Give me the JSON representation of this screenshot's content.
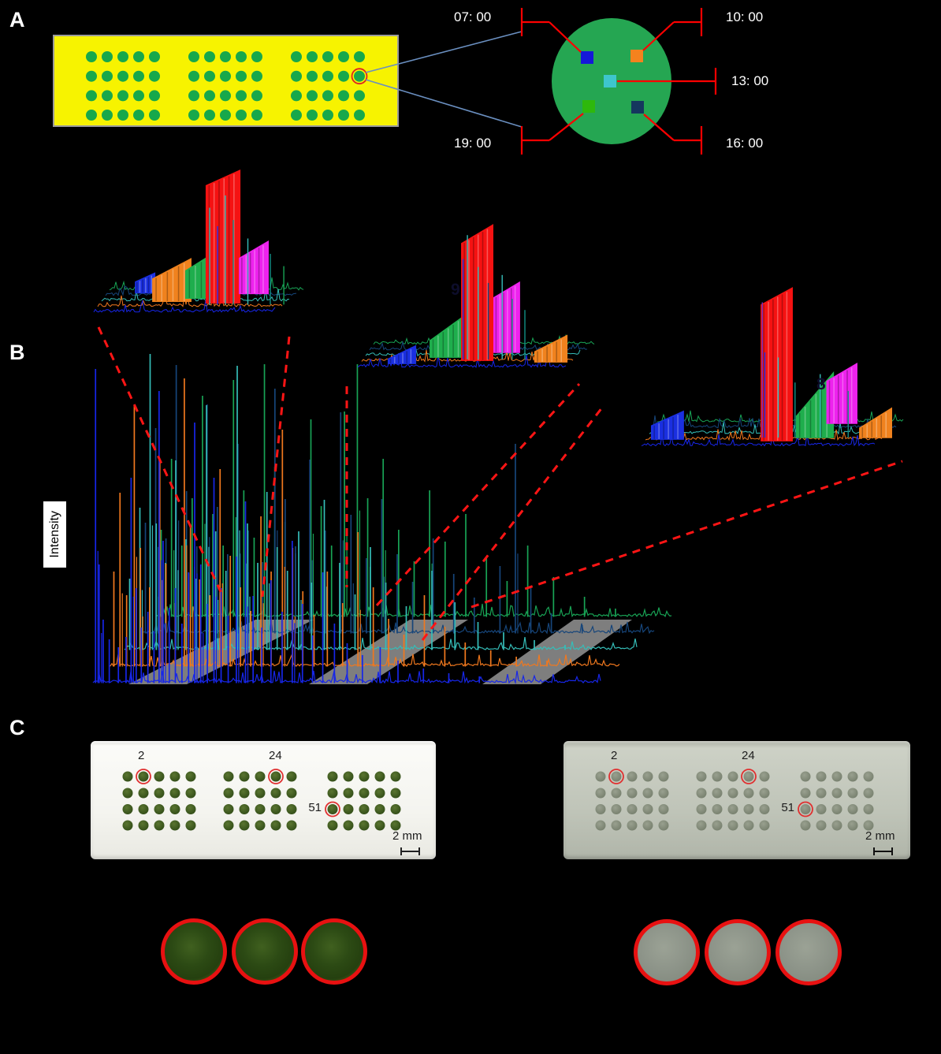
{
  "panel_a": {
    "label": "A",
    "plate": {
      "blocks": 3,
      "rows": 4,
      "cols": 5,
      "plate_color": "#f7f300",
      "dot_color": "#17a84b",
      "border_color": "#9b9b9b",
      "circled_spot": {
        "block": 3,
        "row": 2,
        "col": 5
      }
    },
    "colony": {
      "color": "#25a652"
    },
    "sample_times": [
      {
        "label": "07: 00",
        "square_color": "#1518d8",
        "position": "top-left"
      },
      {
        "label": "10: 00",
        "square_color": "#f5821e",
        "position": "top-right"
      },
      {
        "label": "13: 00",
        "square_color": "#3ec6cc",
        "position": "center"
      },
      {
        "label": "16: 00",
        "square_color": "#15375e",
        "position": "bottom-right"
      },
      {
        "label": "19: 00",
        "square_color": "#2eb80c",
        "position": "bottom-left"
      }
    ],
    "connector_color": "#ff0000",
    "callout_line_color": "#6a8fc0"
  },
  "panel_b": {
    "label": "B",
    "ylabel": "Intensity",
    "zoom_line_color": "#ff1515",
    "band_color": "#8c8c8c"
  },
  "chart_data": {
    "type": "line",
    "title": "",
    "xlabel": "",
    "ylabel": "Intensity",
    "legend": [
      "07: 00",
      "10: 00",
      "13: 00",
      "16: 00",
      "19: 00"
    ],
    "grid": false,
    "series": [
      {
        "name": "07: 00",
        "color": "#1726e8",
        "peaks": [
          [
            0.005,
            398
          ],
          [
            0.012,
            150
          ],
          [
            0.02,
            80
          ],
          [
            0.032,
            55
          ],
          [
            0.05,
            45
          ],
          [
            0.065,
            58
          ],
          [
            0.075,
            260
          ],
          [
            0.085,
            120
          ],
          [
            0.095,
            70
          ],
          [
            0.108,
            90
          ],
          [
            0.12,
            65
          ],
          [
            0.13,
            370
          ],
          [
            0.138,
            180
          ],
          [
            0.15,
            95
          ],
          [
            0.162,
            120
          ],
          [
            0.175,
            75
          ],
          [
            0.188,
            140
          ],
          [
            0.2,
            330
          ],
          [
            0.212,
            150
          ],
          [
            0.225,
            100
          ],
          [
            0.238,
            260
          ],
          [
            0.252,
            120
          ],
          [
            0.266,
            85
          ],
          [
            0.282,
            160
          ],
          [
            0.3,
            230
          ],
          [
            0.315,
            110
          ],
          [
            0.332,
            70
          ],
          [
            0.35,
            130
          ],
          [
            0.372,
            90
          ],
          [
            0.392,
            180
          ],
          [
            0.412,
            100
          ],
          [
            0.432,
            60
          ],
          [
            0.452,
            140
          ],
          [
            0.475,
            75
          ],
          [
            0.5,
            50
          ],
          [
            0.53,
            35
          ],
          [
            0.565,
            45
          ],
          [
            0.6,
            28
          ],
          [
            0.65,
            18
          ],
          [
            0.7,
            12
          ],
          [
            0.76,
            8
          ]
        ]
      },
      {
        "name": "10: 00",
        "color": "#f0781e",
        "peaks": [
          [
            0.01,
            120
          ],
          [
            0.022,
            220
          ],
          [
            0.035,
            90
          ],
          [
            0.05,
            330
          ],
          [
            0.062,
            150
          ],
          [
            0.08,
            100
          ],
          [
            0.1,
            260
          ],
          [
            0.112,
            130
          ],
          [
            0.13,
            80
          ],
          [
            0.148,
            365
          ],
          [
            0.16,
            180
          ],
          [
            0.178,
            110
          ],
          [
            0.198,
            90
          ],
          [
            0.218,
            250
          ],
          [
            0.238,
            140
          ],
          [
            0.258,
            100
          ],
          [
            0.278,
            70
          ],
          [
            0.298,
            190
          ],
          [
            0.318,
            120
          ],
          [
            0.34,
            300
          ],
          [
            0.36,
            150
          ],
          [
            0.38,
            95
          ],
          [
            0.402,
            65
          ],
          [
            0.428,
            120
          ],
          [
            0.458,
            80
          ],
          [
            0.488,
            170
          ],
          [
            0.518,
            100
          ],
          [
            0.548,
            60
          ],
          [
            0.578,
            40
          ],
          [
            0.618,
            90
          ],
          [
            0.658,
            50
          ],
          [
            0.698,
            30
          ],
          [
            0.748,
            20
          ],
          [
            0.798,
            12
          ],
          [
            0.858,
            7
          ]
        ]
      },
      {
        "name": "13: 00",
        "color": "#35bdb8",
        "peaks": [
          [
            0.01,
            90
          ],
          [
            0.03,
            180
          ],
          [
            0.05,
            375
          ],
          [
            0.062,
            160
          ],
          [
            0.08,
            110
          ],
          [
            0.1,
            240
          ],
          [
            0.12,
            140
          ],
          [
            0.14,
            90
          ],
          [
            0.16,
            310
          ],
          [
            0.178,
            150
          ],
          [
            0.198,
            100
          ],
          [
            0.22,
            360
          ],
          [
            0.24,
            160
          ],
          [
            0.26,
            110
          ],
          [
            0.278,
            200
          ],
          [
            0.298,
            130
          ],
          [
            0.318,
            100
          ],
          [
            0.34,
            150
          ],
          [
            0.365,
            85
          ],
          [
            0.39,
            190
          ],
          [
            0.42,
            110
          ],
          [
            0.45,
            70
          ],
          [
            0.48,
            130
          ],
          [
            0.51,
            85
          ],
          [
            0.55,
            55
          ],
          [
            0.6,
            100
          ],
          [
            0.645,
            60
          ],
          [
            0.69,
            35
          ],
          [
            0.74,
            22
          ],
          [
            0.8,
            12
          ],
          [
            0.86,
            6
          ]
        ]
      },
      {
        "name": "16: 00",
        "color": "#16457a",
        "peaks": [
          [
            0.01,
            140
          ],
          [
            0.03,
            260
          ],
          [
            0.05,
            120
          ],
          [
            0.07,
            340
          ],
          [
            0.09,
            180
          ],
          [
            0.11,
            110
          ],
          [
            0.13,
            290
          ],
          [
            0.15,
            160
          ],
          [
            0.17,
            100
          ],
          [
            0.19,
            240
          ],
          [
            0.21,
            130
          ],
          [
            0.238,
            90
          ],
          [
            0.262,
            310
          ],
          [
            0.282,
            170
          ],
          [
            0.302,
            110
          ],
          [
            0.33,
            220
          ],
          [
            0.36,
            130
          ],
          [
            0.39,
            280
          ],
          [
            0.41,
            150
          ],
          [
            0.44,
            95
          ],
          [
            0.47,
            170
          ],
          [
            0.5,
            100
          ],
          [
            0.53,
            65
          ],
          [
            0.57,
            120
          ],
          [
            0.61,
            75
          ],
          [
            0.65,
            45
          ],
          [
            0.7,
            85
          ],
          [
            0.73,
            240
          ],
          [
            0.76,
            60
          ],
          [
            0.8,
            25
          ],
          [
            0.86,
            10
          ]
        ]
      },
      {
        "name": "19: 00",
        "color": "#18a355",
        "peaks": [
          [
            0.01,
            110
          ],
          [
            0.03,
            200
          ],
          [
            0.05,
            90
          ],
          [
            0.07,
            150
          ],
          [
            0.09,
            280
          ],
          [
            0.11,
            130
          ],
          [
            0.13,
            90
          ],
          [
            0.15,
            300
          ],
          [
            0.17,
            160
          ],
          [
            0.19,
            100
          ],
          [
            0.21,
            320
          ],
          [
            0.23,
            190
          ],
          [
            0.25,
            120
          ],
          [
            0.27,
            80
          ],
          [
            0.3,
            250
          ],
          [
            0.32,
            140
          ],
          [
            0.34,
            90
          ],
          [
            0.365,
            260
          ],
          [
            0.39,
            320
          ],
          [
            0.41,
            150
          ],
          [
            0.44,
            200
          ],
          [
            0.47,
            110
          ],
          [
            0.5,
            70
          ],
          [
            0.53,
            160
          ],
          [
            0.56,
            95
          ],
          [
            0.6,
            130
          ],
          [
            0.64,
            75
          ],
          [
            0.68,
            45
          ],
          [
            0.72,
            90
          ],
          [
            0.77,
            50
          ],
          [
            0.83,
            25
          ],
          [
            0.89,
            10
          ]
        ]
      }
    ],
    "insets": [
      {
        "annotation": "",
        "fences": [
          {
            "c": "blue",
            "x0": 0.197,
            "x1": 0.288,
            "y0": 0.78,
            "y1": 0.72,
            "b": 0.858
          },
          {
            "c": "orange",
            "x0": 0.274,
            "x1": 0.449,
            "y0": 0.76,
            "y1": 0.626,
            "b": 0.913
          },
          {
            "c": "green",
            "x0": 0.421,
            "x1": 0.607,
            "y0": 0.708,
            "y1": 0.538,
            "b": 0.892
          },
          {
            "c": "red",
            "x0": 0.512,
            "x1": 0.667,
            "y0": 0.154,
            "y1": 0.051,
            "b": 0.923
          },
          {
            "c": "magenta",
            "x0": 0.66,
            "x1": 0.793,
            "y0": 0.626,
            "y1": 0.513,
            "b": 0.862
          }
        ],
        "spikes": [
          {
            "x": 0.53,
            "t": 0.3,
            "c": "cyan"
          },
          {
            "x": 0.565,
            "t": 0.42,
            "c": "blue"
          },
          {
            "x": 0.6,
            "t": 0.22,
            "c": "cyan"
          },
          {
            "x": 0.635,
            "t": 0.38,
            "c": "teal"
          },
          {
            "x": 0.7,
            "t": 0.5,
            "c": "cyan"
          },
          {
            "x": 0.8,
            "t": 0.6,
            "c": "teal"
          },
          {
            "x": 0.86,
            "t": 0.68,
            "c": "green"
          }
        ]
      },
      {
        "annotation": "9",
        "fences": [
          {
            "c": "blue",
            "x0": 0.131,
            "x1": 0.244,
            "y0": 0.925,
            "y1": 0.84,
            "b": 0.96
          },
          {
            "c": "green",
            "x0": 0.297,
            "x1": 0.437,
            "y0": 0.81,
            "y1": 0.65,
            "b": 0.92
          },
          {
            "c": "red",
            "x0": 0.422,
            "x1": 0.55,
            "y0": 0.2,
            "y1": 0.08,
            "b": 0.94
          },
          {
            "c": "magenta",
            "x0": 0.55,
            "x1": 0.656,
            "y0": 0.54,
            "y1": 0.44,
            "b": 0.89
          },
          {
            "c": "orange",
            "x0": 0.712,
            "x1": 0.844,
            "y0": 0.88,
            "y1": 0.775,
            "b": 0.95
          }
        ],
        "spikes": [
          {
            "x": 0.43,
            "t": 0.3,
            "c": "blue"
          },
          {
            "x": 0.447,
            "t": 0.15,
            "c": "cyan"
          },
          {
            "x": 0.49,
            "t": 0.35,
            "c": "cyan"
          },
          {
            "x": 0.53,
            "t": 0.45,
            "c": "navy"
          },
          {
            "x": 0.585,
            "t": 0.4,
            "c": "cyan"
          },
          {
            "x": 0.625,
            "t": 0.55,
            "c": "teal"
          },
          {
            "x": 0.675,
            "t": 0.62,
            "c": "teal"
          }
        ]
      },
      {
        "annotation": "8",
        "fences": [
          {
            "c": "blue",
            "x0": 0.045,
            "x1": 0.163,
            "y0": 0.857,
            "y1": 0.767,
            "b": 0.943
          },
          {
            "c": "red",
            "x0": 0.437,
            "x1": 0.552,
            "y0": 0.133,
            "y1": 0.029,
            "b": 0.952
          },
          {
            "c": "green",
            "x0": 0.563,
            "x1": 0.699,
            "y0": 0.8,
            "y1": 0.533,
            "b": 0.933
          },
          {
            "c": "magenta",
            "x0": 0.672,
            "x1": 0.783,
            "y0": 0.59,
            "y1": 0.481,
            "b": 0.848
          },
          {
            "c": "orange",
            "x0": 0.789,
            "x1": 0.907,
            "y0": 0.871,
            "y1": 0.748,
            "b": 0.933
          }
        ],
        "spikes": [
          {
            "x": 0.443,
            "t": 0.12,
            "c": "purple"
          },
          {
            "x": 0.452,
            "t": 0.42,
            "c": "blue"
          },
          {
            "x": 0.5,
            "t": 0.45,
            "c": "cyan"
          },
          {
            "x": 0.56,
            "t": 0.6,
            "c": "teal"
          },
          {
            "x": 0.65,
            "t": 0.55,
            "c": "cyan"
          },
          {
            "x": 0.75,
            "t": 0.65,
            "c": "teal"
          }
        ]
      }
    ]
  },
  "panel_c": {
    "label": "C",
    "plates": [
      {
        "appearance": "white",
        "blocks": 3,
        "rows": 4,
        "cols": 5,
        "labels": [
          {
            "text": "2"
          },
          {
            "text": "24"
          },
          {
            "text": "51"
          }
        ],
        "scale_text": "2 mm"
      },
      {
        "appearance": "gray",
        "blocks": 3,
        "rows": 4,
        "cols": 5,
        "labels": [
          {
            "text": "2"
          },
          {
            "text": "24"
          },
          {
            "text": "51"
          }
        ],
        "scale_text": "2 mm"
      }
    ]
  }
}
